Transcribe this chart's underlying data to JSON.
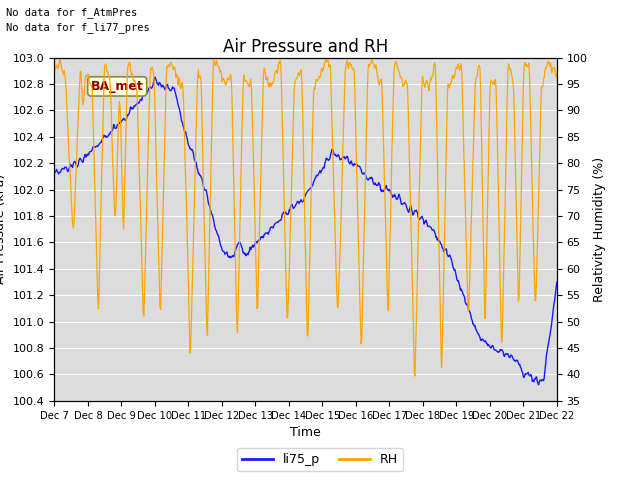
{
  "title": "Air Pressure and RH",
  "ylabel_left": "Air Pressure (kPa)",
  "ylabel_right": "Relativity Humidity (%)",
  "xlabel": "Time",
  "ylim_left": [
    100.4,
    103.0
  ],
  "ylim_right": [
    35,
    100
  ],
  "yticks_left": [
    100.4,
    100.6,
    100.8,
    101.0,
    101.2,
    101.4,
    101.6,
    101.8,
    102.0,
    102.2,
    102.4,
    102.6,
    102.8,
    103.0
  ],
  "yticks_right": [
    35,
    40,
    45,
    50,
    55,
    60,
    65,
    70,
    75,
    80,
    85,
    90,
    95,
    100
  ],
  "xtick_labels": [
    "Dec 7",
    "Dec 8",
    "Dec 9",
    "Dec 10",
    "Dec 11",
    "Dec 12",
    "Dec 13",
    "Dec 14",
    "Dec 15",
    "Dec 16",
    "Dec 17",
    "Dec 18",
    "Dec 19",
    "Dec 20",
    "Dec 21",
    "Dec 22"
  ],
  "text_no_data_1": "No data for f_AtmPres",
  "text_no_data_2": "No data for f_li77_pres",
  "annotation_text": "BA_met",
  "color_blue": "#1a1aff",
  "color_orange": "#FFA500",
  "legend_entries": [
    "li75_p",
    "RH"
  ],
  "title_fontsize": 12,
  "axis_label_fontsize": 9,
  "tick_fontsize": 8,
  "background_color": "#ffffff",
  "plot_bg_color": "#dcdcdc",
  "grid_color": "#ffffff"
}
